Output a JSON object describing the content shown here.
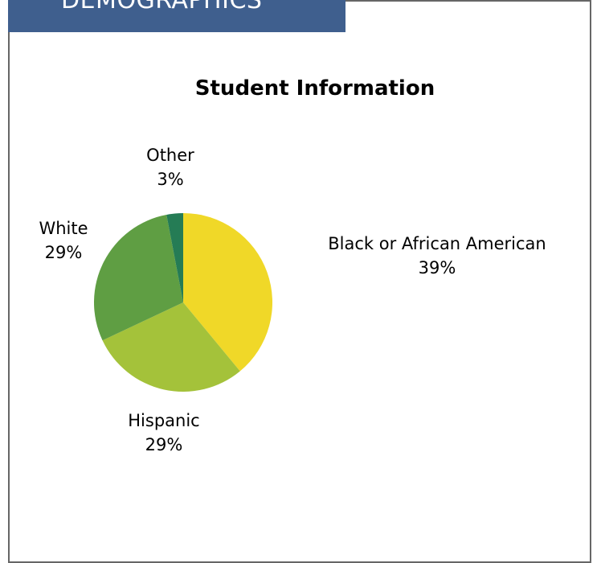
{
  "header": {
    "label": "DEMOGRAPHICS"
  },
  "chart_data": {
    "type": "pie",
    "title": "Student Information",
    "slices": [
      {
        "label": "Black or African American",
        "value": 39,
        "value_label": "39%",
        "color": "#f0d828"
      },
      {
        "label": "Hispanic",
        "value": 29,
        "value_label": "29%",
        "color": "#a4c23a"
      },
      {
        "label": "White",
        "value": 29,
        "value_label": "29%",
        "color": "#5f9e43"
      },
      {
        "label": "Other",
        "value": 3,
        "value_label": "3%",
        "color": "#257c55"
      }
    ],
    "start_angle_deg": 0,
    "direction": "clockwise"
  }
}
